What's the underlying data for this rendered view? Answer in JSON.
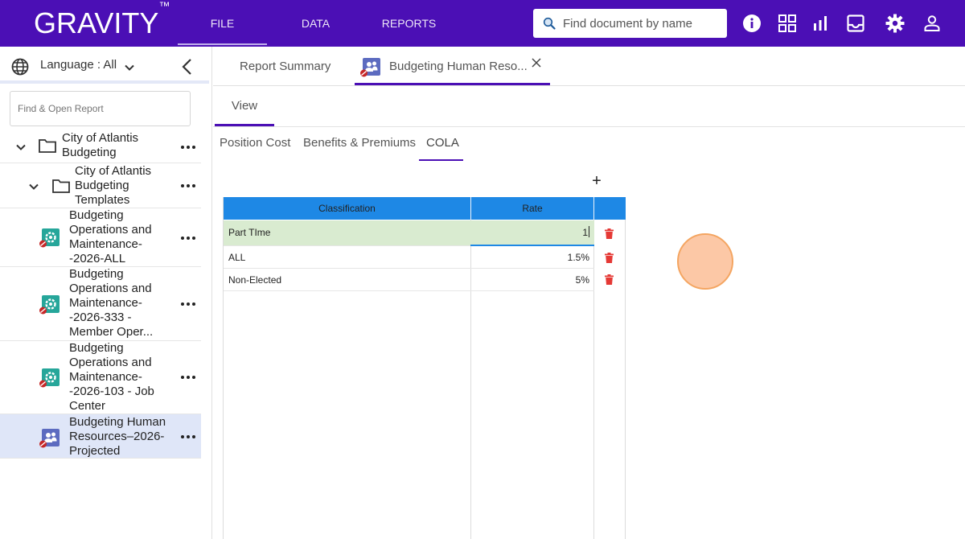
{
  "app": {
    "logo": "GRAVITY",
    "logo_mark": "™"
  },
  "nav": {
    "tabs": [
      {
        "label": "FILE"
      },
      {
        "label": "DATA"
      },
      {
        "label": "REPORTS"
      }
    ]
  },
  "search": {
    "placeholder": "Find document by name"
  },
  "top_icons": [
    "info-icon",
    "grid-icon",
    "bar-chart-icon",
    "inbox-icon",
    "gear-icon",
    "user-icon"
  ],
  "sidebar": {
    "language_label": "Language : All",
    "find_placeholder": "Find & Open Report",
    "tree": [
      {
        "label_lines": [
          "City of Atlantis",
          "Budgeting"
        ]
      },
      {
        "label_lines": [
          "City of Atlantis",
          "Budgeting",
          "Templates"
        ]
      },
      {
        "label_lines": [
          "Budgeting",
          "Operations and",
          "Maintenance-",
          "-2026-ALL"
        ]
      },
      {
        "label_lines": [
          "Budgeting",
          "Operations and",
          "Maintenance-",
          "-2026-333 -",
          "Member Oper..."
        ]
      },
      {
        "label_lines": [
          "Budgeting",
          "Operations and",
          "Maintenance-",
          "-2026-103 - Job",
          "Center"
        ]
      },
      {
        "label_lines": [
          "Budgeting Human",
          "Resources–2026-",
          "Projected"
        ]
      }
    ]
  },
  "doc_tabs": [
    {
      "label": "Report Summary"
    },
    {
      "label": "Budgeting Human Reso..."
    }
  ],
  "view_tab": "View",
  "sub_tabs": [
    {
      "label": "Position Cost"
    },
    {
      "label": "Benefits & Premiums"
    },
    {
      "label": "COLA"
    }
  ],
  "add_label": "+",
  "table": {
    "headers": {
      "classification": "Classification",
      "rate": "Rate"
    },
    "rows": [
      {
        "classification": "Part TIme",
        "rate": "1"
      },
      {
        "classification": "ALL",
        "rate": "1.5%"
      },
      {
        "classification": "Non-Elected",
        "rate": "5%"
      }
    ]
  },
  "colors": {
    "brand": "#4b0fb5",
    "header": "#1e88e5",
    "edit_row": "#d9ebd0",
    "delete": "#e53935",
    "teal_icon": "#26a69a",
    "slate_icon": "#5c6bc0"
  }
}
